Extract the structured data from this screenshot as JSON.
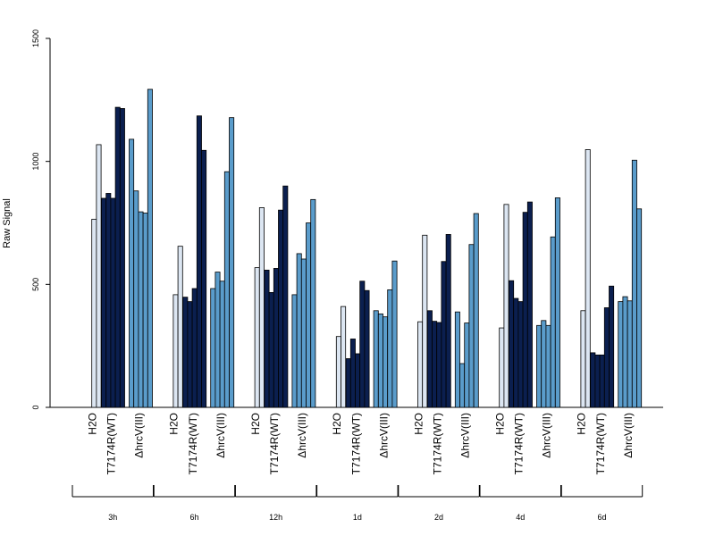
{
  "chart_data": {
    "type": "bar",
    "ylabel": "Raw Signal",
    "xlabel": "",
    "title": "",
    "ylim": [
      0,
      1500
    ],
    "yticks": [
      "0",
      "500",
      "1000",
      "1500"
    ],
    "grid": false,
    "legend": "none",
    "categories": [
      "H2O",
      "T7174R(WT)",
      "ΔhrcV(III)"
    ],
    "colors": {
      "H2O": "#dce6f2",
      "T7174R(WT)": "#0b1f4f",
      "ΔhrcV(III)": "#5a9ccb"
    },
    "groups": [
      {
        "label": "3h",
        "H2O": [
          0,
          765,
          1068
        ],
        "T7174R(WT)": [
          850,
          870,
          850,
          1220,
          1215
        ],
        "ΔhrcV(III)": [
          1090,
          880,
          795,
          790,
          1293
        ]
      },
      {
        "label": "6h",
        "H2O": [
          0,
          458,
          655
        ],
        "T7174R(WT)": [
          448,
          430,
          483,
          1185,
          1045
        ],
        "ΔhrcV(III)": [
          483,
          550,
          513,
          958,
          1178
        ]
      },
      {
        "label": "12h",
        "H2O": [
          0,
          568,
          812
        ],
        "T7174R(WT)": [
          558,
          467,
          565,
          802,
          900
        ],
        "ΔhrcV(III)": [
          458,
          625,
          603,
          750,
          845
        ]
      },
      {
        "label": "1d",
        "H2O": [
          0,
          288,
          410
        ],
        "T7174R(WT)": [
          198,
          278,
          218,
          513,
          475
        ],
        "ΔhrcV(III)": [
          393,
          380,
          368,
          478,
          595
        ]
      },
      {
        "label": "2d",
        "H2O": [
          0,
          348,
          700
        ],
        "T7174R(WT)": [
          393,
          350,
          345,
          593,
          703
        ],
        "ΔhrcV(III)": [
          388,
          178,
          343,
          662,
          788
        ]
      },
      {
        "label": "4d",
        "H2O": [
          0,
          323,
          825
        ],
        "T7174R(WT)": [
          515,
          443,
          430,
          793,
          835
        ],
        "ΔhrcV(III)": [
          333,
          353,
          333,
          693,
          852
        ]
      },
      {
        "label": "6d",
        "H2O": [
          0,
          393,
          1048
        ],
        "T7174R(WT)": [
          222,
          213,
          213,
          405,
          493
        ],
        "ΔhrcV(III)": [
          430,
          450,
          433,
          1005,
          807
        ]
      }
    ]
  }
}
